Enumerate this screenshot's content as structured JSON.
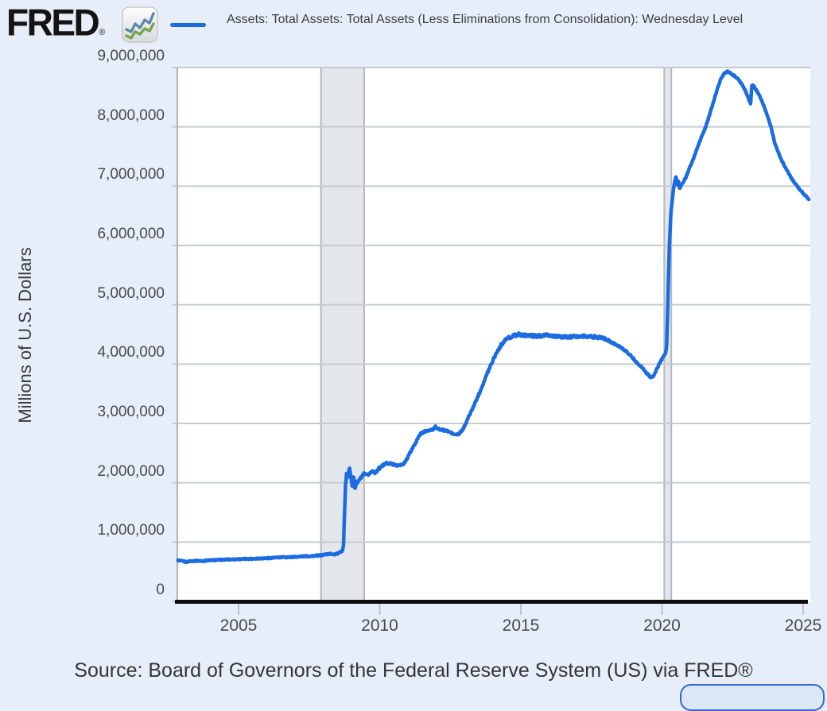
{
  "branding": {
    "logo_text": "FRED",
    "registered_mark": "®",
    "logo_icon": "fred-chart-icon"
  },
  "legend": {
    "label": "Assets: Total Assets: Total Assets (Less Eliminations from Consolidation): Wednesday Level",
    "swatch_color": "#1b6ce1",
    "position": "top"
  },
  "source": {
    "text": "Source: Board of Governors of the Federal Reserve System (US) via FRED®"
  },
  "colors": {
    "page_background": "#e8eef9",
    "plot_background": "#ffffff",
    "gridline": "#c7cbcf",
    "plot_left_border": "#aeb2b6",
    "axis_line": "#0d0d0d",
    "x_tick_mark": "#b4c3da",
    "recession_fill": "#e3e7eb",
    "recession_edge": "#b3b9bf",
    "series_line": "#1b6ce1",
    "partial_button_border": "#3566cb",
    "partial_button_fill": "#dbe6f7"
  },
  "chart_data": {
    "type": "line",
    "title": "Assets: Total Assets: Total Assets (Less Eliminations from Consolidation): Wednesday Level",
    "xlabel": "",
    "ylabel": "Millions of U.S. Dollars",
    "grid": "horizontal",
    "legend_position": "top",
    "x_axis": {
      "min": 2002.85,
      "max": 2025.25,
      "ticks": [
        2005,
        2010,
        2015,
        2020,
        2025
      ],
      "tick_labels": [
        "2005",
        "2010",
        "2015",
        "2020",
        "2025"
      ]
    },
    "y_axis": {
      "title": "Millions of U.S. Dollars",
      "min": 0,
      "max": 9000000,
      "ticks": [
        0,
        1000000,
        2000000,
        3000000,
        4000000,
        5000000,
        6000000,
        7000000,
        8000000,
        9000000
      ],
      "tick_labels": [
        "0",
        "1,000,000",
        "2,000,000",
        "3,000,000",
        "4,000,000",
        "5,000,000",
        "6,000,000",
        "7,000,000",
        "8,000,000",
        "9,000,000"
      ]
    },
    "recessions": [
      {
        "start": 2007.92,
        "end": 2009.45
      },
      {
        "start": 2020.08,
        "end": 2020.33
      }
    ],
    "noise_amplitude": [
      [
        2002.85,
        9000
      ],
      [
        2008.6,
        11000
      ],
      [
        2008.75,
        18000
      ],
      [
        2009.5,
        22000
      ],
      [
        2010.5,
        16000
      ],
      [
        2013.0,
        14000
      ],
      [
        2014.3,
        24000
      ],
      [
        2017.5,
        24000
      ],
      [
        2018.5,
        15000
      ],
      [
        2019.8,
        12000
      ],
      [
        2020.3,
        10000
      ],
      [
        2021.0,
        14000
      ],
      [
        2022.5,
        13000
      ],
      [
        2025.2,
        10000
      ]
    ],
    "series": [
      {
        "name": "Assets: Total Assets: Total Assets (Less Eliminations from Consolidation): Wednesday Level",
        "color": "#1b6ce1",
        "points": [
          [
            2002.85,
            690000
          ],
          [
            2003.0,
            680000
          ],
          [
            2003.15,
            665000
          ],
          [
            2003.3,
            680000
          ],
          [
            2003.5,
            685000
          ],
          [
            2003.7,
            680000
          ],
          [
            2003.9,
            690000
          ],
          [
            2004.1,
            695000
          ],
          [
            2004.3,
            700000
          ],
          [
            2004.6,
            705000
          ],
          [
            2004.9,
            710000
          ],
          [
            2005.2,
            715000
          ],
          [
            2005.5,
            720000
          ],
          [
            2005.8,
            725000
          ],
          [
            2006.1,
            730000
          ],
          [
            2006.4,
            740000
          ],
          [
            2006.7,
            745000
          ],
          [
            2007.0,
            750000
          ],
          [
            2007.3,
            760000
          ],
          [
            2007.6,
            765000
          ],
          [
            2007.9,
            775000
          ],
          [
            2008.1,
            795000
          ],
          [
            2008.25,
            800000
          ],
          [
            2008.4,
            795000
          ],
          [
            2008.55,
            810000
          ],
          [
            2008.68,
            860000
          ],
          [
            2008.72,
            950000
          ],
          [
            2008.75,
            1450000
          ],
          [
            2008.79,
            1950000
          ],
          [
            2008.83,
            2160000
          ],
          [
            2008.87,
            2080000
          ],
          [
            2008.93,
            2250000
          ],
          [
            2008.99,
            2080000
          ],
          [
            2009.03,
            1930000
          ],
          [
            2009.07,
            2130000
          ],
          [
            2009.12,
            1890000
          ],
          [
            2009.17,
            1990000
          ],
          [
            2009.25,
            2030000
          ],
          [
            2009.35,
            2090000
          ],
          [
            2009.45,
            2150000
          ],
          [
            2009.55,
            2120000
          ],
          [
            2009.65,
            2160000
          ],
          [
            2009.75,
            2200000
          ],
          [
            2009.85,
            2170000
          ],
          [
            2009.95,
            2230000
          ],
          [
            2010.1,
            2290000
          ],
          [
            2010.25,
            2330000
          ],
          [
            2010.4,
            2320000
          ],
          [
            2010.55,
            2300000
          ],
          [
            2010.7,
            2290000
          ],
          [
            2010.85,
            2310000
          ],
          [
            2011.0,
            2440000
          ],
          [
            2011.15,
            2570000
          ],
          [
            2011.3,
            2700000
          ],
          [
            2011.45,
            2830000
          ],
          [
            2011.6,
            2865000
          ],
          [
            2011.75,
            2880000
          ],
          [
            2011.9,
            2900000
          ],
          [
            2011.97,
            2960000
          ],
          [
            2012.05,
            2910000
          ],
          [
            2012.2,
            2890000
          ],
          [
            2012.35,
            2880000
          ],
          [
            2012.5,
            2850000
          ],
          [
            2012.65,
            2810000
          ],
          [
            2012.8,
            2820000
          ],
          [
            2012.95,
            2900000
          ],
          [
            2013.1,
            3060000
          ],
          [
            2013.3,
            3260000
          ],
          [
            2013.5,
            3480000
          ],
          [
            2013.7,
            3710000
          ],
          [
            2013.9,
            3950000
          ],
          [
            2014.1,
            4160000
          ],
          [
            2014.3,
            4320000
          ],
          [
            2014.5,
            4430000
          ],
          [
            2014.7,
            4470000
          ],
          [
            2014.9,
            4500000
          ],
          [
            2015.1,
            4490000
          ],
          [
            2015.35,
            4480000
          ],
          [
            2015.6,
            4470000
          ],
          [
            2015.85,
            4490000
          ],
          [
            2016.1,
            4475000
          ],
          [
            2016.4,
            4460000
          ],
          [
            2016.7,
            4455000
          ],
          [
            2017.0,
            4465000
          ],
          [
            2017.3,
            4470000
          ],
          [
            2017.6,
            4460000
          ],
          [
            2017.9,
            4440000
          ],
          [
            2018.1,
            4400000
          ],
          [
            2018.3,
            4350000
          ],
          [
            2018.5,
            4290000
          ],
          [
            2018.7,
            4230000
          ],
          [
            2018.9,
            4140000
          ],
          [
            2019.1,
            4030000
          ],
          [
            2019.3,
            3940000
          ],
          [
            2019.45,
            3850000
          ],
          [
            2019.6,
            3780000
          ],
          [
            2019.7,
            3790000
          ],
          [
            2019.8,
            3900000
          ],
          [
            2019.9,
            4000000
          ],
          [
            2020.0,
            4090000
          ],
          [
            2020.08,
            4150000
          ],
          [
            2020.14,
            4200000
          ],
          [
            2020.17,
            4350000
          ],
          [
            2020.21,
            5100000
          ],
          [
            2020.26,
            6000000
          ],
          [
            2020.31,
            6500000
          ],
          [
            2020.36,
            6750000
          ],
          [
            2020.42,
            7000000
          ],
          [
            2020.47,
            7120000
          ],
          [
            2020.5,
            7160000
          ],
          [
            2020.54,
            7020000
          ],
          [
            2020.58,
            7090000
          ],
          [
            2020.62,
            6950000
          ],
          [
            2020.68,
            7010000
          ],
          [
            2020.75,
            7070000
          ],
          [
            2020.85,
            7150000
          ],
          [
            2020.95,
            7280000
          ],
          [
            2021.1,
            7440000
          ],
          [
            2021.25,
            7650000
          ],
          [
            2021.4,
            7830000
          ],
          [
            2021.55,
            8000000
          ],
          [
            2021.7,
            8230000
          ],
          [
            2021.85,
            8460000
          ],
          [
            2022.0,
            8700000
          ],
          [
            2022.1,
            8820000
          ],
          [
            2022.2,
            8900000
          ],
          [
            2022.3,
            8940000
          ],
          [
            2022.4,
            8910000
          ],
          [
            2022.5,
            8880000
          ],
          [
            2022.65,
            8830000
          ],
          [
            2022.8,
            8740000
          ],
          [
            2022.95,
            8610000
          ],
          [
            2023.05,
            8500000
          ],
          [
            2023.1,
            8440000
          ],
          [
            2023.14,
            8390000
          ],
          [
            2023.18,
            8700000
          ],
          [
            2023.25,
            8690000
          ],
          [
            2023.35,
            8610000
          ],
          [
            2023.5,
            8480000
          ],
          [
            2023.6,
            8360000
          ],
          [
            2023.7,
            8230000
          ],
          [
            2023.85,
            8020000
          ],
          [
            2024.0,
            7720000
          ],
          [
            2024.2,
            7470000
          ],
          [
            2024.4,
            7290000
          ],
          [
            2024.6,
            7120000
          ],
          [
            2024.8,
            6990000
          ],
          [
            2025.0,
            6880000
          ],
          [
            2025.1,
            6830000
          ],
          [
            2025.2,
            6770000
          ]
        ]
      }
    ]
  }
}
